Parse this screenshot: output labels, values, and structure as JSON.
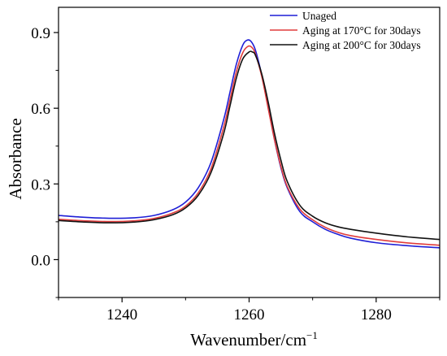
{
  "chart_data": {
    "type": "line",
    "xlabel": "Wavenumber/cm",
    "xlabel_sup": "−1",
    "ylabel": "Absorbance",
    "xlim": [
      1230,
      1290
    ],
    "ylim": [
      -0.15,
      1.0
    ],
    "xticks": [
      1240,
      1260,
      1280
    ],
    "xtick_labels": [
      "1240",
      "1260",
      "1280"
    ],
    "yticks": [
      0.0,
      0.3,
      0.6,
      0.9
    ],
    "ytick_labels": [
      "0.0",
      "0.3",
      "0.6",
      "0.9"
    ],
    "grid": false,
    "legend_position": "top-right",
    "series": [
      {
        "name": "Unaged",
        "color": "#1f1fd6",
        "x": [
          1230,
          1234,
          1238,
          1242,
          1245,
          1248,
          1250,
          1252,
          1254,
          1256,
          1257,
          1258,
          1259,
          1259.7,
          1260.3,
          1261,
          1262,
          1263,
          1264,
          1265,
          1266,
          1268,
          1270,
          1272,
          1274,
          1276,
          1280,
          1285,
          1290
        ],
        "y": [
          0.175,
          0.168,
          0.164,
          0.166,
          0.175,
          0.198,
          0.228,
          0.285,
          0.385,
          0.555,
          0.665,
          0.775,
          0.85,
          0.87,
          0.865,
          0.83,
          0.73,
          0.605,
          0.475,
          0.365,
          0.285,
          0.19,
          0.15,
          0.12,
          0.1,
          0.085,
          0.067,
          0.055,
          0.047
        ]
      },
      {
        "name": "Aging at 170°C for 30days",
        "color": "#e03c3c",
        "x": [
          1230,
          1234,
          1238,
          1242,
          1245,
          1248,
          1250,
          1252,
          1254,
          1256,
          1257,
          1258,
          1259,
          1259.8,
          1260.4,
          1261,
          1262,
          1263,
          1264,
          1265,
          1266,
          1268,
          1270,
          1272,
          1274,
          1276,
          1280,
          1285,
          1290
        ],
        "y": [
          0.16,
          0.154,
          0.151,
          0.154,
          0.163,
          0.185,
          0.212,
          0.265,
          0.36,
          0.525,
          0.635,
          0.745,
          0.82,
          0.845,
          0.842,
          0.815,
          0.725,
          0.6,
          0.475,
          0.37,
          0.29,
          0.2,
          0.158,
          0.128,
          0.108,
          0.095,
          0.08,
          0.066,
          0.057
        ]
      },
      {
        "name": "Aging at 200°C for 30days",
        "color": "#111111",
        "x": [
          1230,
          1234,
          1238,
          1242,
          1245,
          1248,
          1250,
          1252,
          1254,
          1256,
          1257,
          1258,
          1259,
          1260,
          1260.5,
          1261,
          1262,
          1263,
          1264,
          1265,
          1266,
          1268,
          1270,
          1272,
          1274,
          1276,
          1280,
          1285,
          1290
        ],
        "y": [
          0.155,
          0.149,
          0.146,
          0.149,
          0.158,
          0.178,
          0.205,
          0.255,
          0.345,
          0.5,
          0.61,
          0.72,
          0.795,
          0.823,
          0.823,
          0.81,
          0.735,
          0.625,
          0.5,
          0.395,
          0.31,
          0.215,
          0.172,
          0.146,
          0.13,
          0.12,
          0.105,
          0.09,
          0.08
        ]
      }
    ]
  }
}
